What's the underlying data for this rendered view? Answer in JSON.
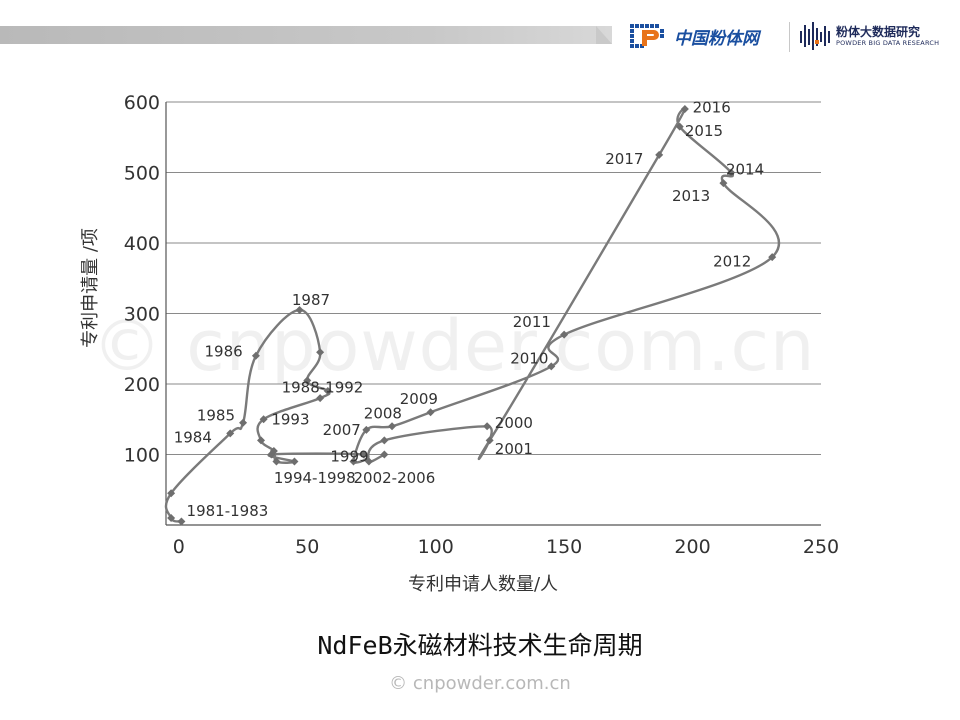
{
  "header": {
    "logo_cn_text": "中国粉体网",
    "logo_pbd_title": "粉体大数据研究",
    "logo_pbd_sub": "POWDER BIG DATA RESEARCH"
  },
  "watermark_center": "© cnpowder.com.cn",
  "caption": "NdFeB永磁材料技术生命周期",
  "footer_watermark": "© cnpowder.com.cn",
  "colors": {
    "line": "#7a7a7a",
    "marker": "#6e6e6e",
    "grid": "#8a8a8a",
    "brand_blue": "#1a4fa0",
    "brand_orange": "#e8731a"
  },
  "chart_data": {
    "type": "line",
    "xlabel": "专利申请人数量/人",
    "ylabel": "专利申请量 /项",
    "xlim": [
      -5,
      250
    ],
    "ylim": [
      0,
      600
    ],
    "xticks": [
      0,
      50,
      100,
      150,
      200,
      250
    ],
    "xtick_labels": [
      "0",
      "50",
      "100",
      "150",
      "200",
      "250"
    ],
    "yticks": [
      100,
      200,
      300,
      400,
      500,
      600
    ],
    "ytick_labels": [
      "100",
      "200",
      "300",
      "400",
      "500",
      "600"
    ],
    "grid": "horizontal",
    "points": [
      {
        "x": 1,
        "y": 5
      },
      {
        "x": -3,
        "y": 10
      },
      {
        "x": -3,
        "y": 45
      },
      {
        "x": 20,
        "y": 130
      },
      {
        "x": 25,
        "y": 145
      },
      {
        "x": 30,
        "y": 240
      },
      {
        "x": 47,
        "y": 305
      },
      {
        "x": 55,
        "y": 245
      },
      {
        "x": 50,
        "y": 205
      },
      {
        "x": 58,
        "y": 190
      },
      {
        "x": 55,
        "y": 180
      },
      {
        "x": 33,
        "y": 150
      },
      {
        "x": 32,
        "y": 120
      },
      {
        "x": 37,
        "y": 105
      },
      {
        "x": 38,
        "y": 90
      },
      {
        "x": 45,
        "y": 90
      },
      {
        "x": 36,
        "y": 100
      },
      {
        "x": 72,
        "y": 100
      },
      {
        "x": 68,
        "y": 90
      },
      {
        "x": 73,
        "y": 135
      },
      {
        "x": 83,
        "y": 140
      },
      {
        "x": 98,
        "y": 160
      },
      {
        "x": 145,
        "y": 225
      },
      {
        "x": 150,
        "y": 270
      },
      {
        "x": 231,
        "y": 380
      },
      {
        "x": 212,
        "y": 485
      },
      {
        "x": 215,
        "y": 500
      },
      {
        "x": 195,
        "y": 565
      },
      {
        "x": 197,
        "y": 590
      },
      {
        "x": 187,
        "y": 525
      },
      {
        "x": 121,
        "y": 120
      },
      {
        "x": 120,
        "y": 140
      },
      {
        "x": 80,
        "y": 120
      },
      {
        "x": 74,
        "y": 90
      },
      {
        "x": 80,
        "y": 100
      }
    ],
    "labels": [
      {
        "text": "1981-1983",
        "x": 3,
        "y": 20
      },
      {
        "text": "1984",
        "x": -2,
        "y": 124
      },
      {
        "text": "1985",
        "x": 7,
        "y": 155
      },
      {
        "text": "1986",
        "x": 10,
        "y": 246
      },
      {
        "text": "1987",
        "x": 44,
        "y": 319
      },
      {
        "text": "1988-1992",
        "x": 40,
        "y": 195
      },
      {
        "text": "1993",
        "x": 36,
        "y": 150
      },
      {
        "text": "1994-1998",
        "x": 37,
        "y": 67
      },
      {
        "text": "1999",
        "x": 59,
        "y": 97
      },
      {
        "text": "2002-2006",
        "x": 68,
        "y": 67
      },
      {
        "text": "2007",
        "x": 56,
        "y": 135
      },
      {
        "text": "2008",
        "x": 72,
        "y": 158
      },
      {
        "text": "2009",
        "x": 86,
        "y": 179
      },
      {
        "text": "2010",
        "x": 129,
        "y": 236
      },
      {
        "text": "2011",
        "x": 130,
        "y": 288
      },
      {
        "text": "2012",
        "x": 208,
        "y": 374
      },
      {
        "text": "2013",
        "x": 192,
        "y": 467
      },
      {
        "text": "2014",
        "x": 213,
        "y": 504
      },
      {
        "text": "2015",
        "x": 197,
        "y": 559
      },
      {
        "text": "2016",
        "x": 200,
        "y": 592
      },
      {
        "text": "2017",
        "x": 166,
        "y": 519
      },
      {
        "text": "2000",
        "x": 123,
        "y": 145
      },
      {
        "text": "2001",
        "x": 123,
        "y": 108
      }
    ]
  }
}
